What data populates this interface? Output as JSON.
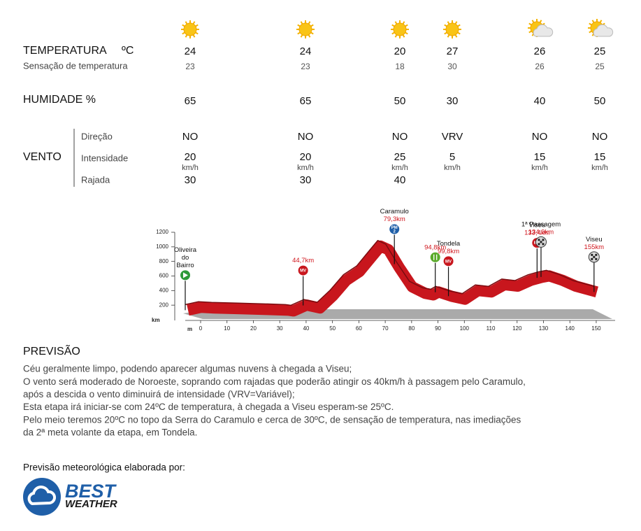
{
  "weather": {
    "labels": {
      "temperature": "TEMPERATURA",
      "temperature_unit": "ºC",
      "feels_like": "Sensação de temperatura",
      "humidity": "HUMIDADE %",
      "wind": "VENTO",
      "direction": "Direção",
      "intensity": "Intensidade",
      "gust": "Rajada"
    },
    "columns": [
      {
        "icon": "sun",
        "temperature": 24,
        "feels_like": 23,
        "humidity": 65,
        "direction": "NO",
        "intensity": 20,
        "intensity_unit": "km/h",
        "gust": 30
      },
      {
        "icon": "sun",
        "temperature": 24,
        "feels_like": 23,
        "humidity": 65,
        "direction": "NO",
        "intensity": 20,
        "intensity_unit": "km/h",
        "gust": 30
      },
      {
        "icon": "sun",
        "temperature": 20,
        "feels_like": 18,
        "humidity": 50,
        "direction": "NO",
        "intensity": 25,
        "intensity_unit": "km/h",
        "gust": 40
      },
      {
        "icon": "sun",
        "temperature": 27,
        "feels_like": 30,
        "humidity": 30,
        "direction": "VRV",
        "intensity": 5,
        "intensity_unit": "km/h",
        "gust": null
      },
      {
        "icon": "partly-cloudy",
        "temperature": 26,
        "feels_like": 26,
        "humidity": 40,
        "direction": "NO",
        "intensity": 15,
        "intensity_unit": "km/h",
        "gust": null
      },
      {
        "icon": "partly-cloudy",
        "temperature": 25,
        "feels_like": 25,
        "humidity": 50,
        "direction": "NO",
        "intensity": 15,
        "intensity_unit": "km/h",
        "gust": null
      }
    ]
  },
  "profile": {
    "x_unit": "km",
    "y_unit": "m",
    "xlim": [
      0,
      155
    ],
    "xticks": [
      0,
      10,
      20,
      30,
      40,
      50,
      60,
      70,
      80,
      90,
      100,
      110,
      120,
      130,
      140,
      150
    ],
    "ylim": [
      0,
      1200
    ],
    "yticks": [
      200,
      400,
      600,
      800,
      1000,
      1200
    ],
    "color": "#c8161d",
    "x": [
      0,
      5,
      10,
      20,
      30,
      38,
      40,
      45,
      50,
      55,
      60,
      65,
      70,
      73,
      76,
      80,
      85,
      90,
      93,
      95,
      100,
      105,
      110,
      115,
      120,
      125,
      130,
      134,
      137,
      142,
      147,
      155
    ],
    "elevation": [
      150,
      190,
      180,
      170,
      160,
      150,
      140,
      220,
      180,
      350,
      560,
      680,
      900,
      1030,
      980,
      740,
      470,
      380,
      360,
      400,
      340,
      300,
      420,
      400,
      500,
      480,
      560,
      600,
      620,
      560,
      480,
      400
    ],
    "markers": [
      {
        "km": 0,
        "icon": "start",
        "name": [
          "Oliveira",
          "do",
          "Bairro"
        ]
      },
      {
        "km": 44.7,
        "icon": "mv",
        "icon_text": "MV",
        "label": "44,7km"
      },
      {
        "km": 79.3,
        "icon": "pm",
        "icon_text": "PM",
        "icon_number": 2,
        "name": [
          "Caramulo"
        ],
        "label": "79,3km"
      },
      {
        "km": 94.8,
        "icon": "feed",
        "label": "94,8km"
      },
      {
        "km": 99.8,
        "icon": "mv",
        "icon_text": "MV",
        "name": [
          "Tondela"
        ],
        "label": "99,8km"
      },
      {
        "km": 133.4,
        "icon": "mv",
        "icon_text": "MV",
        "name": [
          "Viseu"
        ],
        "label": "133,4km"
      },
      {
        "km": 134.9,
        "icon": "finish",
        "name": [
          "1ª Passagem"
        ],
        "label": "134,9km"
      },
      {
        "km": 155,
        "icon": "finish",
        "name": [
          "Viseu"
        ],
        "label": "155km"
      }
    ]
  },
  "forecast": {
    "title": "PREVISÃO",
    "lines": [
      "Céu geralmente limpo, podendo aparecer algumas nuvens à chegada a Viseu;",
      "O vento será moderado de Noroeste, soprando com rajadas que poderão atingir os 40km/h à passagem pelo Caramulo,",
      "após a descida o vento diminuirá de intensidade (VRV=Variável);",
      "Esta etapa irá iniciar-se com 24ºC de temperatura, à chegada a Viseu esperam-se 25ºC.",
      "Pelo meio teremos 20ºC no topo da Serra do Caramulo e cerca de 30ºC, de sensação de temperatura, nas imediações",
      "da 2ª meta volante da etapa, em Tondela."
    ]
  },
  "credit": {
    "text": "Previsão meteorológica elaborada por:",
    "logo_top": "BEST",
    "logo_bottom": "WEATHER"
  }
}
